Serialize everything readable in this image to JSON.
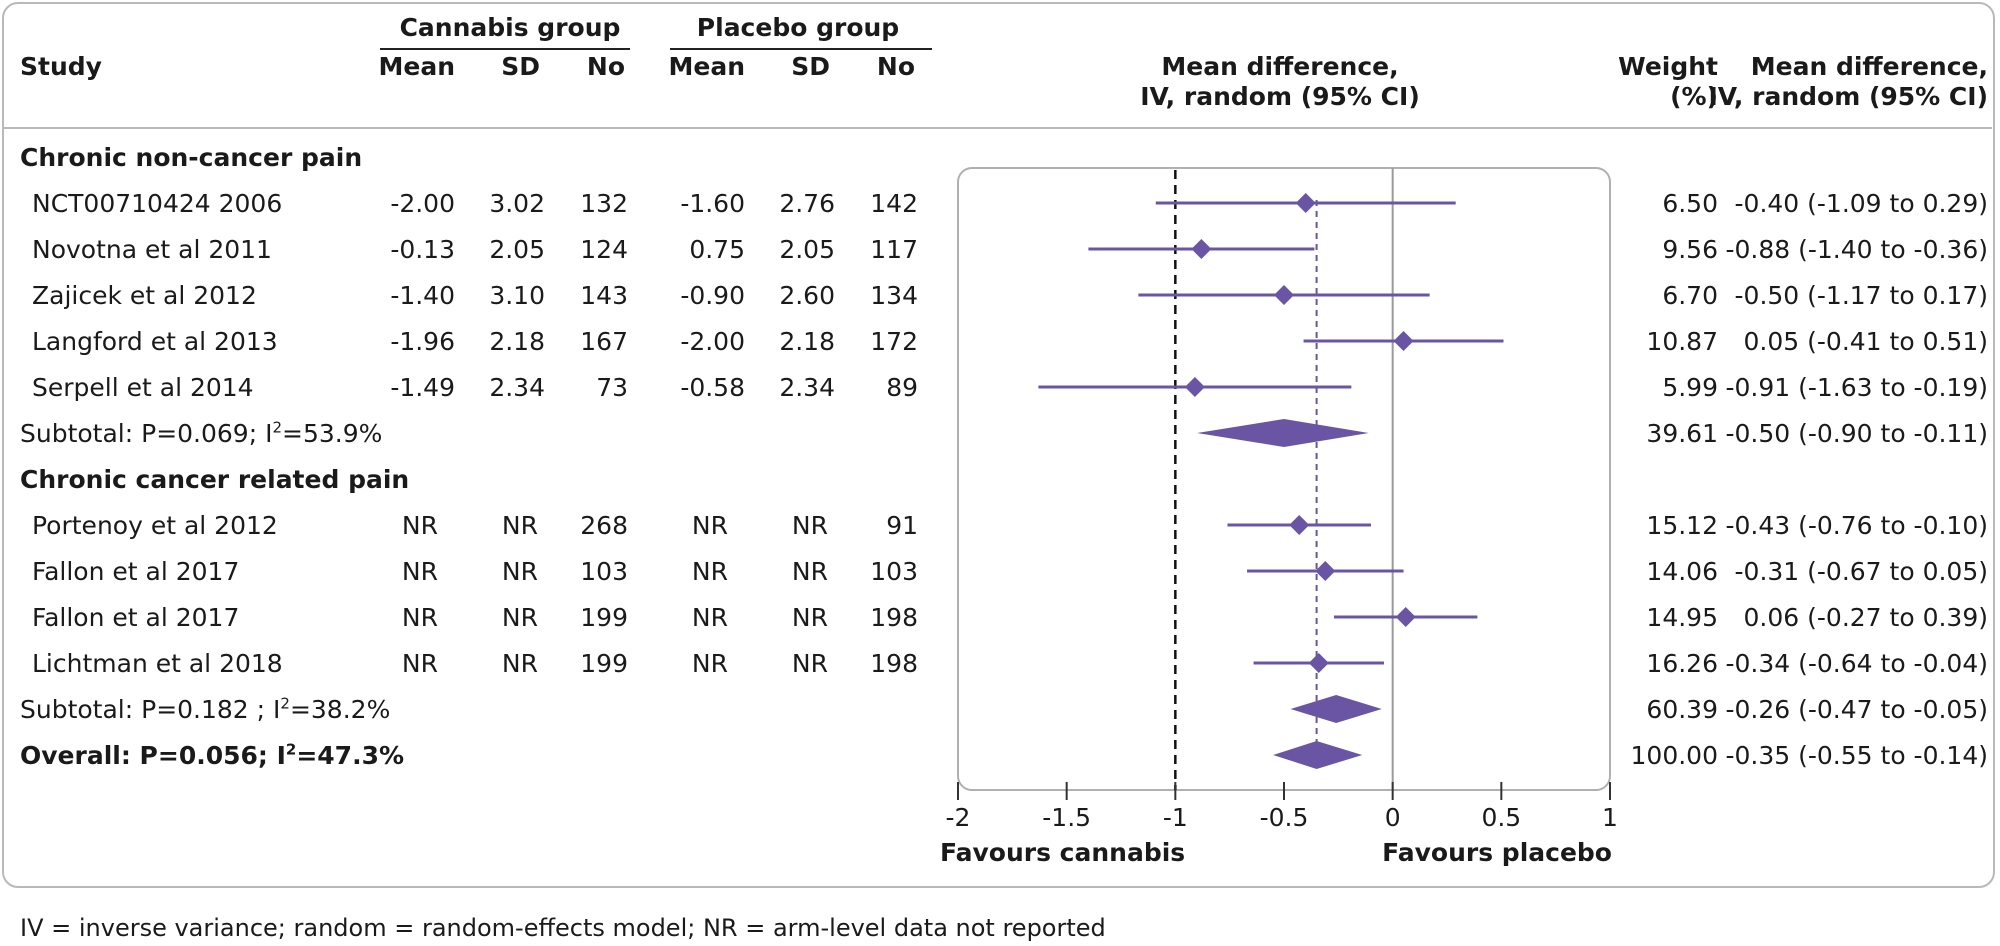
{
  "headers": {
    "study": "Study",
    "cannabis_group": "Cannabis group",
    "placebo_group": "Placebo group",
    "mean": "Mean",
    "sd": "SD",
    "no": "No",
    "plot_title_line1": "Mean difference,",
    "plot_title_line2": "IV, random (95% CI)",
    "weight_line1": "Weight",
    "weight_line2": "(%)",
    "md_line1": "Mean difference,",
    "md_line2": "IV, random (95% CI)"
  },
  "groups": [
    {
      "title": "Chronic non-cancer pain",
      "studies": [
        {
          "name": "NCT00710424 2006",
          "c_mean": "-2.00",
          "c_sd": "3.02",
          "c_no": "132",
          "p_mean": "-1.60",
          "p_sd": "2.76",
          "p_no": "142",
          "weight": "6.50",
          "md_text": "-0.40 (-1.09 to 0.29)"
        },
        {
          "name": "Novotna et al 2011",
          "c_mean": "-0.13",
          "c_sd": "2.05",
          "c_no": "124",
          "p_mean": "0.75",
          "p_sd": "2.05",
          "p_no": "117",
          "weight": "9.56",
          "md_text": "-0.88 (-1.40 to -0.36)"
        },
        {
          "name": "Zajicek et al 2012",
          "c_mean": "-1.40",
          "c_sd": "3.10",
          "c_no": "143",
          "p_mean": "-0.90",
          "p_sd": "2.60",
          "p_no": "134",
          "weight": "6.70",
          "md_text": "-0.50 (-1.17 to 0.17)"
        },
        {
          "name": "Langford et al 2013",
          "c_mean": "-1.96",
          "c_sd": "2.18",
          "c_no": "167",
          "p_mean": "-2.00",
          "p_sd": "2.18",
          "p_no": "172",
          "weight": "10.87",
          "md_text": "0.05 (-0.41 to 0.51)"
        },
        {
          "name": "Serpell et al 2014",
          "c_mean": "-1.49",
          "c_sd": "2.34",
          "c_no": "73",
          "p_mean": "-0.58",
          "p_sd": "2.34",
          "p_no": "89",
          "weight": "5.99",
          "md_text": "-0.91 (-1.63 to -0.19)"
        }
      ],
      "subtotal_label_prefix": "Subtotal: P=0.069; I",
      "subtotal_label_sup": "2",
      "subtotal_label_suffix": "=53.9%",
      "subtotal_weight": "39.61",
      "subtotal_md_text": "-0.50 (-0.90 to -0.11)"
    },
    {
      "title": "Chronic cancer related pain",
      "studies": [
        {
          "name": "Portenoy et al 2012",
          "c_mean": "NR",
          "c_sd": "NR",
          "c_no": "268",
          "p_mean": "NR",
          "p_sd": "NR",
          "p_no": "91",
          "weight": "15.12",
          "md_text": "-0.43 (-0.76 to -0.10)"
        },
        {
          "name": "Fallon et al 2017",
          "c_mean": "NR",
          "c_sd": "NR",
          "c_no": "103",
          "p_mean": "NR",
          "p_sd": "NR",
          "p_no": "103",
          "weight": "14.06",
          "md_text": "-0.31 (-0.67 to 0.05)"
        },
        {
          "name": "Fallon et al 2017",
          "c_mean": "NR",
          "c_sd": "NR",
          "c_no": "199",
          "p_mean": "NR",
          "p_sd": "NR",
          "p_no": "198",
          "weight": "14.95",
          "md_text": "0.06 (-0.27 to 0.39)"
        },
        {
          "name": "Lichtman et al 2018",
          "c_mean": "NR",
          "c_sd": "NR",
          "c_no": "199",
          "p_mean": "NR",
          "p_sd": "NR",
          "p_no": "198",
          "weight": "16.26",
          "md_text": "-0.34 (-0.64 to -0.04)"
        }
      ],
      "subtotal_label_prefix": "Subtotal: P=0.182 ; I",
      "subtotal_label_sup": "2",
      "subtotal_label_suffix": "=38.2%",
      "subtotal_weight": "60.39",
      "subtotal_md_text": "-0.26 (-0.47 to -0.05)"
    }
  ],
  "overall": {
    "label_prefix": "Overall: P=0.056; I",
    "label_sup": "2",
    "label_suffix": "=47.3%",
    "weight": "100.00",
    "md_text": "-0.35 (-0.55 to -0.14)"
  },
  "favours_left": "Favours cannabis",
  "favours_right": "Favours placebo",
  "footnote": "IV = inverse variance; random = random-effects model; NR = arm-level data not reported",
  "chart_data": {
    "type": "forest",
    "xlim": [
      -2,
      1
    ],
    "xticks": [
      "-2",
      "-1.5",
      "-1",
      "-0.5",
      "0",
      "0.5",
      "1"
    ],
    "xtick_values": [
      -2,
      -1.5,
      -1,
      -0.5,
      0,
      0.5,
      1
    ],
    "xlabel_left": "Favours cannabis",
    "xlabel_right": "Favours placebo",
    "reference_lines": {
      "dashed_black": -1,
      "solid_grey": 0,
      "dashed_purple_overall": -0.35
    },
    "studies": [
      {
        "name": "NCT00710424 2006",
        "md": -0.4,
        "lo": -1.09,
        "hi": 0.29
      },
      {
        "name": "Novotna et al 2011",
        "md": -0.88,
        "lo": -1.4,
        "hi": -0.36
      },
      {
        "name": "Zajicek et al 2012",
        "md": -0.5,
        "lo": -1.17,
        "hi": 0.17
      },
      {
        "name": "Langford et al 2013",
        "md": 0.05,
        "lo": -0.41,
        "hi": 0.51
      },
      {
        "name": "Serpell et al 2014",
        "md": -0.91,
        "lo": -1.63,
        "hi": -0.19
      },
      {
        "name": "Subtotal (non-cancer)",
        "md": -0.5,
        "lo": -0.9,
        "hi": -0.11,
        "summary": true
      },
      {
        "name": "Portenoy et al 2012",
        "md": -0.43,
        "lo": -0.76,
        "hi": -0.1
      },
      {
        "name": "Fallon et al 2017",
        "md": -0.31,
        "lo": -0.67,
        "hi": 0.05
      },
      {
        "name": "Fallon et al 2017",
        "md": 0.06,
        "lo": -0.27,
        "hi": 0.39
      },
      {
        "name": "Lichtman et al 2018",
        "md": -0.34,
        "lo": -0.64,
        "hi": -0.04
      },
      {
        "name": "Subtotal (cancer)",
        "md": -0.26,
        "lo": -0.47,
        "hi": -0.05,
        "summary": true
      },
      {
        "name": "Overall",
        "md": -0.35,
        "lo": -0.55,
        "hi": -0.14,
        "summary": true
      }
    ],
    "colors": {
      "marker": "#6a55a4",
      "axis": "#333333",
      "zero_line": "#9a9a9a",
      "panel_border": "#b0b0b0"
    }
  }
}
